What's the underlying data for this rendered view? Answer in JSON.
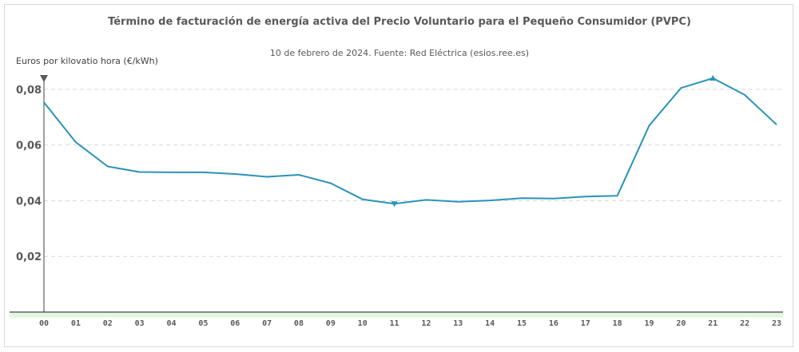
{
  "chart_data": {
    "type": "line",
    "title": "Término de facturación de energía activa del Precio Voluntario para el Pequeño Consumidor (PVPC)",
    "subtitle": "10 de febrero de 2024. Fuente: Red Eléctrica (esios.ree.es)",
    "ylabel": "Euros por kilovatio hora (€/kWh)",
    "xlabel": "",
    "ylim": [
      0,
      0.088
    ],
    "y_ticks": [
      {
        "value": 0.02,
        "label": "0,02"
      },
      {
        "value": 0.04,
        "label": "0,04"
      },
      {
        "value": 0.06,
        "label": "0,06"
      },
      {
        "value": 0.08,
        "label": "0,08"
      }
    ],
    "categories": [
      "00",
      "01",
      "02",
      "03",
      "04",
      "05",
      "06",
      "07",
      "08",
      "09",
      "10",
      "11",
      "12",
      "13",
      "14",
      "15",
      "16",
      "17",
      "18",
      "19",
      "20",
      "21",
      "22",
      "23"
    ],
    "values": [
      0.0753,
      0.061,
      0.0523,
      0.0503,
      0.0502,
      0.0502,
      0.0496,
      0.0486,
      0.0493,
      0.0463,
      0.0405,
      0.0389,
      0.0403,
      0.0396,
      0.0401,
      0.0409,
      0.0408,
      0.0415,
      0.0418,
      0.067,
      0.0805,
      0.084,
      0.078,
      0.0673
    ],
    "min_index": 11,
    "max_index": 21,
    "grid": true,
    "colors": {
      "line": "#2a93b8",
      "grid": "#d9d9d9",
      "axis": "#404040",
      "band": "#e2f7e2"
    }
  }
}
